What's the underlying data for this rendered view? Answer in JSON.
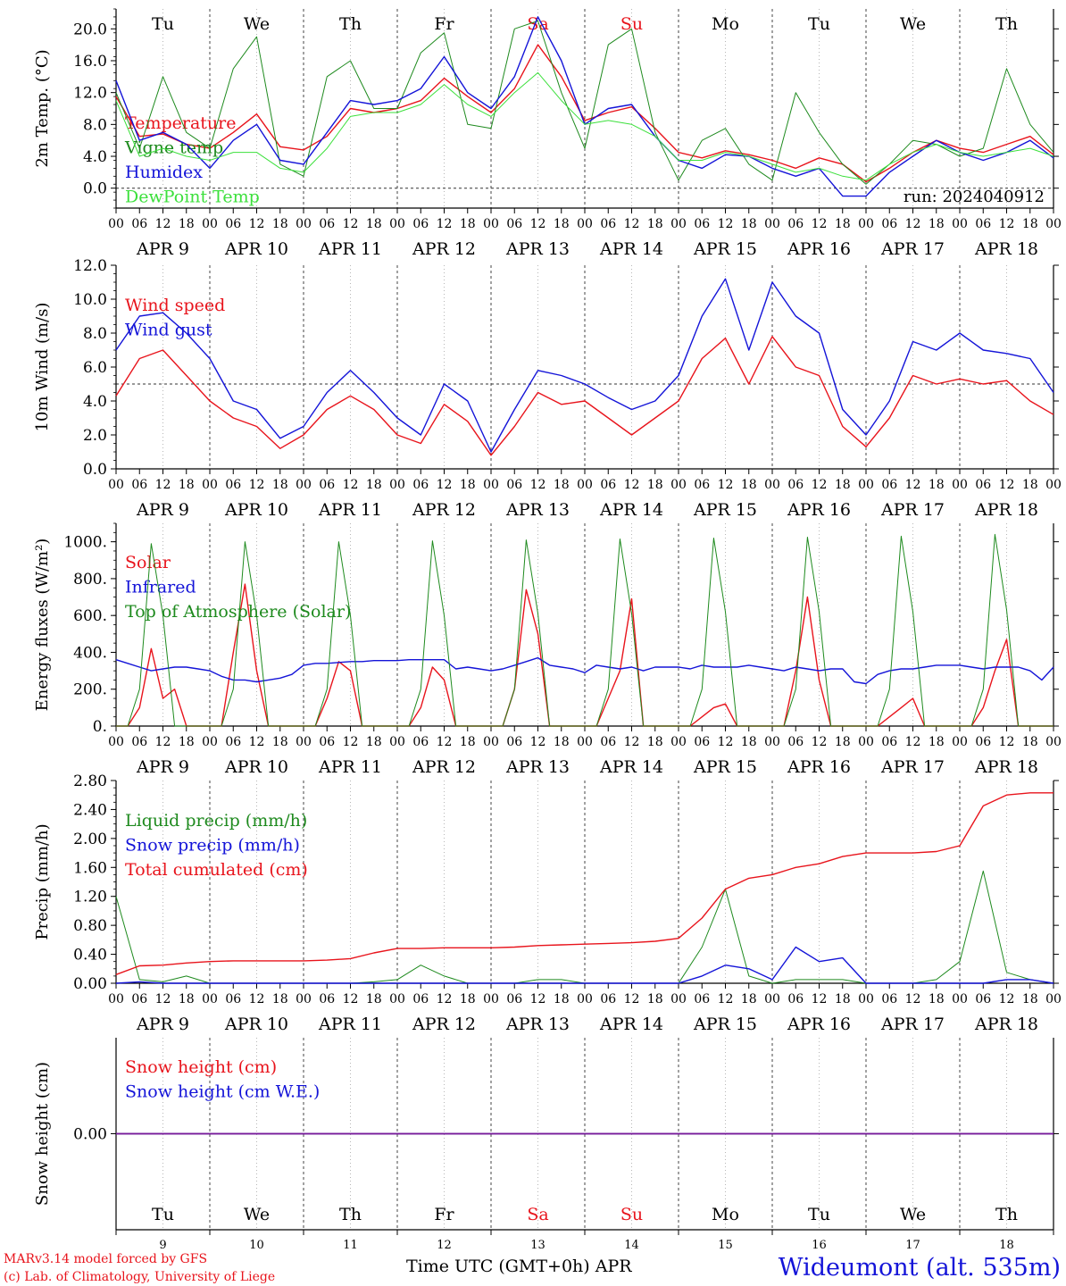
{
  "colors": {
    "red": "#e8141c",
    "green": "#1e8a1e",
    "blue": "#1414d8",
    "lightgreen": "#3ce03c",
    "purple": "#7a1a9a",
    "black": "#000000"
  },
  "weekdays": [
    "Tu",
    "We",
    "Th",
    "Fr",
    "Sa",
    "Su",
    "Mo",
    "Tu",
    "We",
    "Th"
  ],
  "weekday_weekend": [
    false,
    false,
    false,
    false,
    true,
    true,
    false,
    false,
    false,
    false
  ],
  "day_labels": [
    "APR  9",
    "APR 10",
    "APR 11",
    "APR 12",
    "APR 13",
    "APR 14",
    "APR 15",
    "APR 16",
    "APR 17",
    "APR 18"
  ],
  "day_numbers": [
    "9",
    "10",
    "11",
    "12",
    "13",
    "14",
    "15",
    "16",
    "17",
    "18"
  ],
  "hour_ticks": [
    "00",
    "06",
    "12",
    "18"
  ],
  "hour_end": "00",
  "footer": {
    "model": "MARv3.14 model forced by GFS",
    "lab": "(c) Lab. of Climatology, University of Liege",
    "axis_title": "Time UTC (GMT+0h) APR",
    "station": "Wideumont (alt. 535m)"
  },
  "chart_data": [
    {
      "type": "line",
      "ylabel": "2m Temp. (°C)",
      "ylim": [
        -2.5,
        22.5
      ],
      "yticks": [
        "0.0",
        "4.0",
        "8.0",
        "12.0",
        "16.0",
        "20.0"
      ],
      "reference_line": 0,
      "annotation": "run: 2024040912",
      "x_hours": [
        0,
        6,
        12,
        18,
        24,
        30,
        36,
        42,
        48,
        54,
        60,
        66,
        72,
        78,
        84,
        90,
        96,
        102,
        108,
        114,
        120,
        126,
        132,
        138,
        144,
        150,
        156,
        162,
        168,
        174,
        180,
        186,
        192,
        198,
        204,
        210,
        216,
        222,
        228,
        234,
        240
      ],
      "series": [
        {
          "name": "Temperature",
          "color": "red",
          "values": [
            11.5,
            6.5,
            6.8,
            5.5,
            5.0,
            7.0,
            9.3,
            5.2,
            4.8,
            6.5,
            10.0,
            9.5,
            10.0,
            11.0,
            13.8,
            11.5,
            9.5,
            12.5,
            18.0,
            14.0,
            8.5,
            9.5,
            10.2,
            7.5,
            4.5,
            3.8,
            4.7,
            4.2,
            3.5,
            2.5,
            3.8,
            3.0,
            0.8,
            2.5,
            4.5,
            6.0,
            5.0,
            4.5,
            5.5,
            6.5,
            4.2
          ]
        },
        {
          "name": "Vigne temp",
          "color": "green",
          "values": [
            12.0,
            5.0,
            14.0,
            7.0,
            5.0,
            15.0,
            19.0,
            3.0,
            1.5,
            14.0,
            16.0,
            10.0,
            10.0,
            17.0,
            19.5,
            8.0,
            7.5,
            20.0,
            21.0,
            12.0,
            5.0,
            18.0,
            20.0,
            7.0,
            1.0,
            6.0,
            7.5,
            3.0,
            1.0,
            12.0,
            7.0,
            3.0,
            0.5,
            3.0,
            6.0,
            5.5,
            4.0,
            5.0,
            15.0,
            8.0,
            4.5
          ]
        },
        {
          "name": "Humidex",
          "color": "blue",
          "values": [
            13.5,
            6.0,
            7.0,
            5.5,
            2.5,
            6.0,
            8.0,
            3.5,
            3.0,
            7.0,
            11.0,
            10.5,
            11.0,
            12.5,
            16.5,
            12.0,
            10.0,
            14.0,
            21.5,
            16.0,
            8.0,
            10.0,
            10.5,
            6.5,
            3.5,
            2.5,
            4.2,
            4.0,
            2.5,
            1.5,
            2.5,
            -1.0,
            -1.0,
            2.0,
            4.0,
            6.0,
            4.5,
            3.5,
            4.5,
            6.0,
            3.8
          ]
        },
        {
          "name": "DewPoint Temp",
          "color": "lightgreen",
          "values": [
            11.0,
            4.0,
            5.0,
            4.0,
            3.5,
            4.5,
            4.5,
            2.5,
            2.0,
            5.0,
            9.0,
            9.5,
            9.5,
            10.5,
            13.0,
            10.5,
            9.0,
            12.0,
            14.5,
            11.0,
            8.0,
            8.5,
            8.0,
            6.5,
            3.5,
            3.5,
            4.5,
            4.0,
            3.0,
            2.0,
            2.5,
            1.5,
            1.0,
            3.0,
            4.5,
            5.5,
            4.5,
            4.0,
            4.5,
            5.0,
            4.0
          ]
        }
      ]
    },
    {
      "type": "line",
      "ylabel": "10m Wind (m/s)",
      "ylim": [
        0,
        12.0
      ],
      "yticks": [
        "0.0",
        "2.0",
        "4.0",
        "6.0",
        "8.0",
        "10.0",
        "12.0"
      ],
      "reference_line": 5,
      "x_hours": [
        0,
        6,
        12,
        18,
        24,
        30,
        36,
        42,
        48,
        54,
        60,
        66,
        72,
        78,
        84,
        90,
        96,
        102,
        108,
        114,
        120,
        126,
        132,
        138,
        144,
        150,
        156,
        162,
        168,
        174,
        180,
        186,
        192,
        198,
        204,
        210,
        216,
        222,
        228,
        234,
        240
      ],
      "series": [
        {
          "name": "Wind speed",
          "color": "red",
          "values": [
            4.3,
            6.5,
            7.0,
            5.5,
            4.0,
            3.0,
            2.5,
            1.2,
            2.0,
            3.5,
            4.3,
            3.5,
            2.0,
            1.5,
            3.8,
            2.8,
            0.8,
            2.5,
            4.5,
            3.8,
            4.0,
            3.0,
            2.0,
            3.0,
            4.0,
            6.5,
            7.7,
            5.0,
            7.8,
            6.0,
            5.5,
            2.5,
            1.3,
            3.0,
            5.5,
            5.0,
            5.3,
            5.0,
            5.2,
            4.0,
            3.2
          ]
        },
        {
          "name": "Wind gust",
          "color": "blue",
          "values": [
            7.0,
            9.0,
            9.2,
            8.0,
            6.5,
            4.0,
            3.5,
            1.8,
            2.5,
            4.5,
            5.8,
            4.5,
            3.0,
            2.0,
            5.0,
            4.0,
            1.0,
            3.5,
            5.8,
            5.5,
            5.0,
            4.2,
            3.5,
            4.0,
            5.5,
            9.0,
            11.2,
            7.0,
            11.0,
            9.0,
            8.0,
            3.5,
            2.0,
            4.0,
            7.5,
            7.0,
            8.0,
            7.0,
            6.8,
            6.5,
            4.5
          ]
        }
      ]
    },
    {
      "type": "line",
      "ylabel": "Energy fluxes (W/m²)",
      "ylim": [
        0,
        1100
      ],
      "yticks": [
        "0.",
        "200.",
        "400.",
        "600.",
        "800.",
        "1000."
      ],
      "x_hours": [
        0,
        3,
        6,
        9,
        12,
        15,
        18,
        21,
        24,
        27,
        30,
        33,
        36,
        39,
        42,
        45,
        48,
        51,
        54,
        57,
        60,
        63,
        66,
        69,
        72,
        75,
        78,
        81,
        84,
        87,
        90,
        93,
        96,
        99,
        102,
        105,
        108,
        111,
        114,
        117,
        120,
        123,
        126,
        129,
        132,
        135,
        138,
        141,
        144,
        147,
        150,
        153,
        156,
        159,
        162,
        165,
        168,
        171,
        174,
        177,
        180,
        183,
        186,
        189,
        192,
        195,
        198,
        201,
        204,
        207,
        210,
        213,
        216,
        219,
        222,
        225,
        228,
        231,
        234,
        237,
        240
      ],
      "series": [
        {
          "name": "Solar",
          "color": "red",
          "values": [
            0,
            0,
            100,
            420,
            150,
            200,
            0,
            0,
            0,
            0,
            400,
            770,
            300,
            0,
            0,
            0,
            0,
            0,
            150,
            350,
            300,
            0,
            0,
            0,
            0,
            0,
            100,
            320,
            250,
            0,
            0,
            0,
            0,
            0,
            200,
            740,
            500,
            0,
            0,
            0,
            0,
            0,
            150,
            300,
            690,
            0,
            0,
            0,
            0,
            0,
            50,
            100,
            120,
            0,
            0,
            0,
            0,
            0,
            300,
            700,
            250,
            0,
            0,
            0,
            0,
            0,
            50,
            100,
            150,
            0,
            0,
            0,
            0,
            0,
            100,
            300,
            470,
            0,
            0,
            0,
            0
          ]
        },
        {
          "name": "Infrared",
          "color": "blue",
          "values": [
            360,
            340,
            320,
            300,
            310,
            320,
            320,
            310,
            300,
            270,
            250,
            250,
            240,
            250,
            260,
            280,
            330,
            340,
            340,
            345,
            350,
            350,
            355,
            355,
            355,
            360,
            360,
            360,
            360,
            310,
            320,
            310,
            300,
            310,
            330,
            350,
            370,
            330,
            320,
            310,
            290,
            330,
            320,
            310,
            320,
            300,
            320,
            320,
            320,
            310,
            330,
            320,
            320,
            320,
            330,
            320,
            310,
            300,
            320,
            310,
            300,
            310,
            310,
            240,
            230,
            280,
            300,
            310,
            310,
            320,
            330,
            330,
            330,
            320,
            310,
            320,
            320,
            320,
            300,
            250,
            320
          ]
        },
        {
          "name": "Top of Atmosphere (Solar)",
          "color": "green",
          "values": [
            0,
            0,
            200,
            990,
            600,
            0,
            0,
            0,
            0,
            0,
            200,
            1000,
            600,
            0,
            0,
            0,
            0,
            0,
            200,
            1000,
            600,
            0,
            0,
            0,
            0,
            0,
            200,
            1005,
            600,
            0,
            0,
            0,
            0,
            0,
            200,
            1010,
            610,
            0,
            0,
            0,
            0,
            0,
            200,
            1015,
            610,
            0,
            0,
            0,
            0,
            0,
            200,
            1020,
            620,
            0,
            0,
            0,
            0,
            0,
            200,
            1025,
            620,
            0,
            0,
            0,
            0,
            0,
            200,
            1030,
            620,
            0,
            0,
            0,
            0,
            0,
            200,
            1040,
            630,
            0,
            0,
            0,
            0
          ]
        }
      ]
    },
    {
      "type": "line",
      "ylabel": "Precip (mm/h)",
      "ylim": [
        0,
        2.8
      ],
      "yticks": [
        "0.00",
        "0.40",
        "0.80",
        "1.20",
        "1.60",
        "2.00",
        "2.40",
        "2.80"
      ],
      "x_hours": [
        0,
        6,
        12,
        18,
        24,
        30,
        36,
        42,
        48,
        54,
        60,
        66,
        72,
        78,
        84,
        90,
        96,
        102,
        108,
        114,
        120,
        126,
        132,
        138,
        144,
        150,
        156,
        162,
        168,
        174,
        180,
        186,
        192,
        198,
        204,
        210,
        216,
        222,
        228,
        234,
        240
      ],
      "series": [
        {
          "name": "Liquid precip (mm/h)",
          "color": "green",
          "values": [
            1.2,
            0.05,
            0.02,
            0.1,
            0.0,
            0.0,
            0.0,
            0.0,
            0.0,
            0.0,
            0.0,
            0.02,
            0.05,
            0.25,
            0.1,
            0.0,
            0.0,
            0.0,
            0.05,
            0.05,
            0.0,
            0.0,
            0.0,
            0.0,
            0.0,
            0.5,
            1.3,
            0.1,
            0.0,
            0.05,
            0.05,
            0.05,
            0.0,
            0.0,
            0.0,
            0.05,
            0.3,
            1.55,
            0.15,
            0.05,
            0.0
          ]
        },
        {
          "name": "Snow precip (mm/h)",
          "color": "blue",
          "values": [
            0,
            0.02,
            0.0,
            0.0,
            0.0,
            0.0,
            0.0,
            0.0,
            0.0,
            0.0,
            0.0,
            0.0,
            0.0,
            0.0,
            0.0,
            0.0,
            0.0,
            0.0,
            0.0,
            0.0,
            0.0,
            0.0,
            0.0,
            0.0,
            0.0,
            0.1,
            0.25,
            0.2,
            0.05,
            0.5,
            0.3,
            0.35,
            0.0,
            0.0,
            0.0,
            0.0,
            0.0,
            0.0,
            0.05,
            0.05,
            0.0
          ]
        },
        {
          "name": "Total cumulated (cm)",
          "color": "red",
          "values": [
            0.12,
            0.24,
            0.25,
            0.28,
            0.3,
            0.31,
            0.31,
            0.31,
            0.31,
            0.32,
            0.34,
            0.42,
            0.48,
            0.48,
            0.49,
            0.49,
            0.49,
            0.5,
            0.52,
            0.53,
            0.54,
            0.55,
            0.56,
            0.58,
            0.62,
            0.9,
            1.3,
            1.45,
            1.5,
            1.6,
            1.65,
            1.75,
            1.8,
            1.8,
            1.8,
            1.82,
            1.9,
            2.45,
            2.6,
            2.63,
            2.63
          ]
        }
      ]
    },
    {
      "type": "line",
      "ylabel": "Snow height (cm)",
      "ylim": [
        -1,
        1
      ],
      "yticks": [
        "0.00"
      ],
      "x_hours": [
        0,
        240
      ],
      "series": [
        {
          "name": "Snow height (cm)",
          "color": "red",
          "values": [
            0,
            0
          ]
        },
        {
          "name": "Snow height (cm W.E.)",
          "color": "blue",
          "values": [
            0,
            0
          ]
        }
      ]
    }
  ]
}
